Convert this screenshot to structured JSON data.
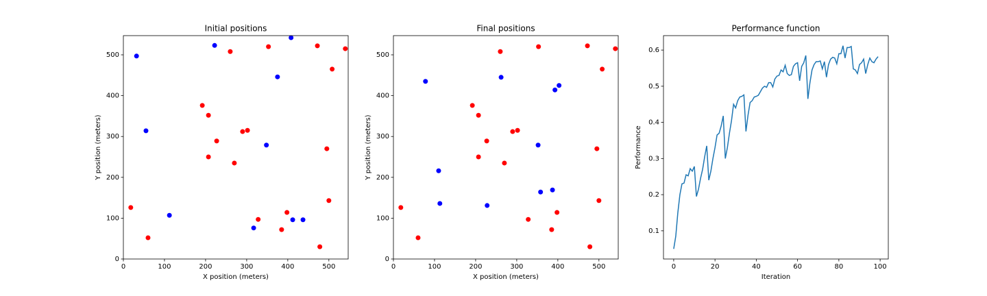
{
  "chart_data": [
    {
      "type": "scatter",
      "title": "Initial positions",
      "xlabel": "X position (meters)",
      "ylabel": "Y position (meters)",
      "xlim": [
        0,
        547
      ],
      "ylim": [
        0,
        547
      ],
      "xticks": [
        0,
        100,
        200,
        300,
        400,
        500
      ],
      "yticks": [
        0,
        100,
        200,
        300,
        400,
        500
      ],
      "series": [
        {
          "color": "#ff0000",
          "x": [
            18,
            60,
            192,
            207,
            227,
            207,
            270,
            260,
            290,
            302,
            353,
            328,
            385,
            398,
            472,
            508,
            540,
            495,
            500,
            478
          ],
          "y": [
            126,
            52,
            376,
            352,
            289,
            250,
            235,
            508,
            312,
            315,
            520,
            97,
            72,
            114,
            522,
            465,
            515,
            270,
            143,
            30
          ]
        },
        {
          "color": "#0000ff",
          "x": [
            32,
            55,
            112,
            222,
            375,
            348,
            408,
            317,
            412,
            437
          ],
          "y": [
            497,
            314,
            107,
            523,
            446,
            279,
            542,
            76,
            96,
            96
          ]
        }
      ]
    },
    {
      "type": "scatter",
      "title": "Final positions",
      "xlabel": "X position (meters)",
      "ylabel": "Y position (meters)",
      "xlim": [
        0,
        547
      ],
      "ylim": [
        0,
        547
      ],
      "xticks": [
        0,
        100,
        200,
        300,
        400,
        500
      ],
      "yticks": [
        0,
        100,
        200,
        300,
        400,
        500
      ],
      "series": [
        {
          "color": "#ff0000",
          "x": [
            18,
            60,
            192,
            207,
            227,
            207,
            270,
            260,
            290,
            302,
            353,
            328,
            385,
            398,
            472,
            508,
            540,
            495,
            500,
            478
          ],
          "y": [
            126,
            52,
            376,
            352,
            289,
            250,
            235,
            508,
            312,
            315,
            520,
            97,
            72,
            114,
            522,
            465,
            515,
            270,
            143,
            30
          ]
        },
        {
          "color": "#0000ff",
          "x": [
            78,
            262,
            110,
            113,
            228,
            352,
            358,
            387,
            393,
            403
          ],
          "y": [
            435,
            445,
            216,
            136,
            131,
            279,
            164,
            169,
            414,
            425
          ]
        }
      ]
    },
    {
      "type": "line",
      "title": "Performance function",
      "xlabel": "Iteration",
      "ylabel": "Performance",
      "xlim": [
        -4.95,
        103.95
      ],
      "ylim": [
        0.022,
        0.64
      ],
      "xticks": [
        0,
        20,
        40,
        60,
        80,
        100
      ],
      "yticks": [
        0.1,
        0.2,
        0.3,
        0.4,
        0.5,
        0.6
      ],
      "x": [
        0,
        1,
        2,
        3,
        4,
        5,
        6,
        7,
        8,
        9,
        10,
        11,
        12,
        13,
        14,
        15,
        16,
        17,
        18,
        19,
        20,
        21,
        22,
        23,
        24,
        25,
        26,
        27,
        28,
        29,
        30,
        31,
        32,
        33,
        34,
        35,
        36,
        37,
        38,
        39,
        40,
        41,
        42,
        43,
        44,
        45,
        46,
        47,
        48,
        49,
        50,
        51,
        52,
        53,
        54,
        55,
        56,
        57,
        58,
        59,
        60,
        61,
        62,
        63,
        64,
        65,
        66,
        67,
        68,
        69,
        70,
        71,
        72,
        73,
        74,
        75,
        76,
        77,
        78,
        79,
        80,
        81,
        82,
        83,
        84,
        85,
        86,
        87,
        88,
        89,
        90,
        91,
        92,
        93,
        94,
        95,
        96,
        97,
        98,
        99
      ],
      "series": [
        {
          "color": "#1f77b4",
          "values": [
            0.05,
            0.085,
            0.15,
            0.2,
            0.23,
            0.232,
            0.255,
            0.252,
            0.272,
            0.265,
            0.278,
            0.195,
            0.215,
            0.245,
            0.27,
            0.305,
            0.335,
            0.24,
            0.265,
            0.3,
            0.33,
            0.365,
            0.37,
            0.39,
            0.418,
            0.3,
            0.33,
            0.37,
            0.405,
            0.45,
            0.44,
            0.46,
            0.47,
            0.472,
            0.476,
            0.375,
            0.42,
            0.455,
            0.46,
            0.47,
            0.472,
            0.475,
            0.485,
            0.495,
            0.5,
            0.497,
            0.51,
            0.51,
            0.498,
            0.52,
            0.528,
            0.53,
            0.545,
            0.54,
            0.558,
            0.535,
            0.53,
            0.532,
            0.555,
            0.562,
            0.565,
            0.515,
            0.555,
            0.565,
            0.585,
            0.465,
            0.51,
            0.545,
            0.56,
            0.568,
            0.568,
            0.57,
            0.548,
            0.568,
            0.525,
            0.56,
            0.575,
            0.58,
            0.578,
            0.562,
            0.59,
            0.59,
            0.612,
            0.578,
            0.607,
            0.607,
            0.61,
            0.548,
            0.545,
            0.535,
            0.56,
            0.565,
            0.575,
            0.535,
            0.56,
            0.578,
            0.568,
            0.565,
            0.575,
            0.582
          ]
        }
      ]
    }
  ]
}
